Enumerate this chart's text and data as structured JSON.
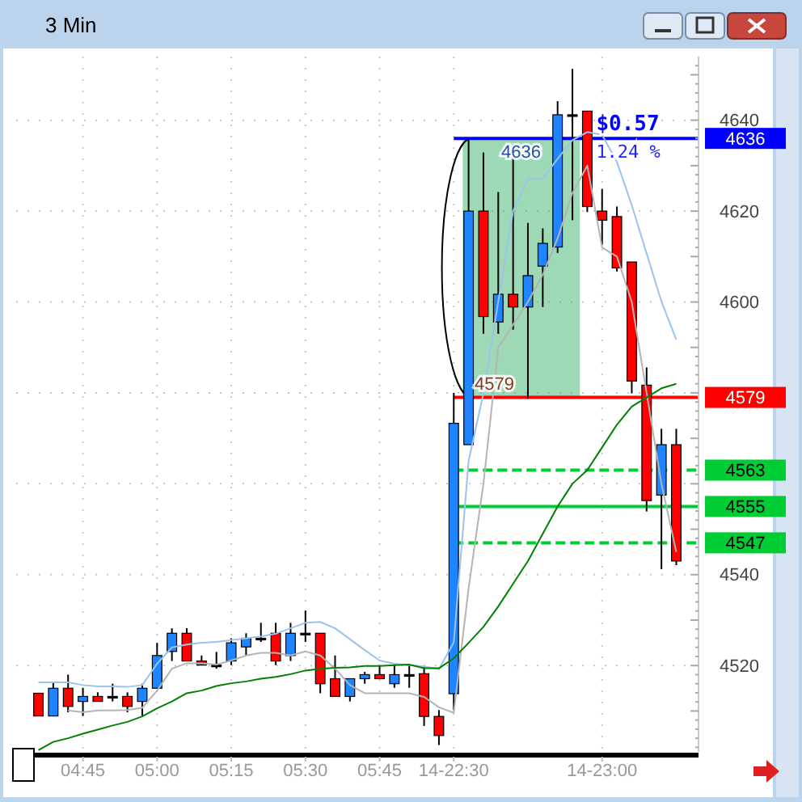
{
  "chart_data": {
    "type": "candlestick",
    "title": "3 Min",
    "categories": [
      null,
      null,
      null,
      "04:45",
      null,
      null,
      null,
      null,
      "05:00",
      null,
      null,
      null,
      null,
      "05:15",
      null,
      null,
      null,
      null,
      "05:30",
      null,
      null,
      null,
      null,
      "05:45",
      null,
      null,
      null,
      null,
      "14-22:30",
      null,
      null,
      null,
      null,
      null,
      null,
      null,
      null,
      null,
      "14-23:00",
      null,
      null,
      null,
      null,
      null
    ],
    "ohlc": [
      [
        4513.9,
        4514,
        4508.9,
        4508.9
      ],
      [
        4508.9,
        4516.3,
        4508.9,
        4515
      ],
      [
        4515,
        4518,
        4509.7,
        4511
      ],
      [
        4512.1,
        4515.1,
        4508.9,
        4513.2
      ],
      [
        4513.2,
        4514.1,
        4512.1,
        4512.1
      ],
      [
        4513.2,
        4516,
        4512.1,
        4513.2
      ],
      [
        4513.2,
        4514.1,
        4509.7,
        4511
      ],
      [
        4512.1,
        4516,
        4508.9,
        4515
      ],
      [
        4515,
        4525,
        4515,
        4522.2
      ],
      [
        4523.1,
        4528.2,
        4521,
        4527.1
      ],
      [
        4527.1,
        4528.2,
        4521,
        4521
      ],
      [
        4521,
        4522.2,
        4520.1,
        4520.1
      ],
      [
        4520.1,
        4523,
        4519.3,
        4520.1
      ],
      [
        4521,
        4526,
        4520.1,
        4525
      ],
      [
        4524.1,
        4527.1,
        4522.2,
        4526
      ],
      [
        4526,
        4529.4,
        4525.2,
        4526
      ],
      [
        4527.1,
        4529.4,
        4520.1,
        4521
      ],
      [
        4522.2,
        4529.4,
        4521,
        4527.1
      ],
      [
        4527.1,
        4532.1,
        4525.2,
        4527.1
      ],
      [
        4527.1,
        4527.1,
        4513.9,
        4516
      ],
      [
        4517.1,
        4522.2,
        4513.2,
        4513.2
      ],
      [
        4513.2,
        4517.1,
        4512.1,
        4517.1
      ],
      [
        4517.1,
        4518.6,
        4516,
        4518
      ],
      [
        4518,
        4520.1,
        4517.1,
        4517.1
      ],
      [
        4516,
        4520.1,
        4515.1,
        4518
      ],
      [
        4518,
        4520.1,
        4515.1,
        4518
      ],
      [
        4518.2,
        4519.8,
        4506.7,
        4508.8
      ],
      [
        4508.8,
        4510.2,
        4502.5,
        4504.6
      ],
      [
        4513.8,
        4580,
        4510.2,
        4573.3
      ],
      [
        4568.6,
        4636,
        4568.6,
        4620
      ],
      [
        4620,
        4632.9,
        4593,
        4596.8
      ],
      [
        4595.6,
        4624.2,
        4593,
        4601.7
      ],
      [
        4601.7,
        4631.7,
        4593.9,
        4598.9
      ],
      [
        4598.9,
        4617.4,
        4578.7,
        4605.8
      ],
      [
        4607.9,
        4616.2,
        4598.9,
        4612.9
      ],
      [
        4612.1,
        4644.2,
        4610.8,
        4641.2
      ],
      [
        4641.2,
        4651.3,
        4618,
        4641.2
      ],
      [
        4642,
        4642,
        4619.8,
        4621
      ],
      [
        4620,
        4624.9,
        4612.6,
        4618
      ],
      [
        4618.8,
        4621,
        4606.7,
        4607.5
      ],
      [
        4608.8,
        4608.8,
        4579.9,
        4582.6
      ],
      [
        4581.7,
        4585.6,
        4553.9,
        4556.3
      ],
      [
        4557.5,
        4572.1,
        4541.2,
        4568.6
      ],
      [
        4568.6,
        4572.1,
        4542.1,
        4543
      ]
    ],
    "colors": [
      "#ff0000",
      "#1f84ff",
      "#ff0000",
      "#1f84ff",
      "#ff0000",
      "#000000",
      "#ff0000",
      "#1f84ff",
      "#1f84ff",
      "#1f84ff",
      "#ff0000",
      "#ff0000",
      "#000000",
      "#1f84ff",
      "#1f84ff",
      "#000000",
      "#ff0000",
      "#1f84ff",
      "#000000",
      "#ff0000",
      "#ff0000",
      "#1f84ff",
      "#1f84ff",
      "#ff0000",
      "#1f84ff",
      "#000000",
      "#ff0000",
      "#ff0000",
      "#1f84ff",
      "#1f84ff",
      "#ff0000",
      "#1f84ff",
      "#ff0000",
      "#1f84ff",
      "#1f84ff",
      "#1f84ff",
      "#000000",
      "#ff0000",
      "#ff0000",
      "#ff0000",
      "#ff0000",
      "#ff0000",
      "#1f84ff",
      "#ff0000"
    ],
    "series": [
      {
        "type": "line",
        "color": "#9cc3ec",
        "values": [
          4516.3,
          4516.3,
          4516.3,
          4515.7,
          4515.4,
          4515.4,
          4515.3,
          4515.7,
          4520.4,
          4524,
          4524.6,
          4525,
          4525.2,
          4525.6,
          4526,
          4526.4,
          4527,
          4528.2,
          4529.4,
          4529.6,
          4528.2,
          4525.8,
          4523.4,
          4521.1,
          4520.4,
          4520.1,
          4519.8,
          4519.2,
          4525.1,
          4565,
          4579.9,
          4600.1,
          4620,
          4627.1,
          4627.1,
          4631.5,
          4635.6,
          4637.4,
          4636.8,
          4630.8,
          4621.3,
          4610.7,
          4600.1,
          4591.7
        ]
      },
      {
        "type": "line",
        "color": "#b4b4b4",
        "values": [
          null,
          null,
          4510.1,
          4509.7,
          4510.1,
          4510.1,
          4510.2,
          4510.7,
          4514.5,
          4519.3,
          4520.5,
          4520.5,
          4520.2,
          4521.1,
          4522.2,
          4522.8,
          4522.8,
          4522.2,
          4523.1,
          4522.2,
          4519.3,
          4515.7,
          4513.9,
          4513.9,
          4513.9,
          4513.9,
          4513.1,
          4510.8,
          4509.6,
          4537,
          4560,
          4590,
          4595,
          4600,
          4606,
          4614,
          4624,
          4630,
          4612,
          4610,
          4600,
          4580,
          4560,
          4545
        ]
      },
      {
        "type": "line",
        "color": "#008000",
        "values": [
          4501.4,
          4503.2,
          4504,
          4505,
          4505.9,
          4506.8,
          4507.6,
          4508.8,
          4510.6,
          4512.1,
          4513.9,
          4514.5,
          4515.5,
          4516.1,
          4516.5,
          4517.1,
          4517.5,
          4518.1,
          4518.9,
          4519.3,
          4519.5,
          4519.6,
          4519.9,
          4519.9,
          4520.1,
          4520.2,
          4519.4,
          4519.4,
          4521.6,
          4525,
          4528.5,
          4533,
          4538,
          4543,
          4549,
          4555,
          4560,
          4563,
          4568,
          4573,
          4577,
          4579,
          4581,
          4582
        ]
      }
    ],
    "ylim": [
      4501,
      4654
    ],
    "yticks": [
      4520,
      4540,
      {
        "value": 4560,
        "label": null
      },
      {
        "value": 4580,
        "label": null
      },
      4600,
      4620,
      4640
    ],
    "grid": true,
    "ref_lines": [
      {
        "axis": "y",
        "value": 4636,
        "label": "4636",
        "color": "#0000ff",
        "line_style": "solid"
      },
      {
        "axis": "y",
        "value": 4579,
        "label": "4579",
        "color": "#ff0000",
        "line_style": "solid"
      },
      {
        "axis": "y",
        "value": 4563,
        "label": "4563",
        "color": "#00cc33",
        "line_style": "dashed"
      },
      {
        "axis": "y",
        "value": 4555,
        "label": "4555",
        "color": "#00cc33",
        "line_style": "solid"
      },
      {
        "axis": "y",
        "value": 4547,
        "label": "4547",
        "color": "#00cc33",
        "line_style": "dashed"
      }
    ],
    "annotations": [
      "$0.57",
      "1.24 %",
      {
        "text": "4636",
        "y": 4636
      },
      {
        "text": "4579",
        "y": 4579
      }
    ]
  }
}
